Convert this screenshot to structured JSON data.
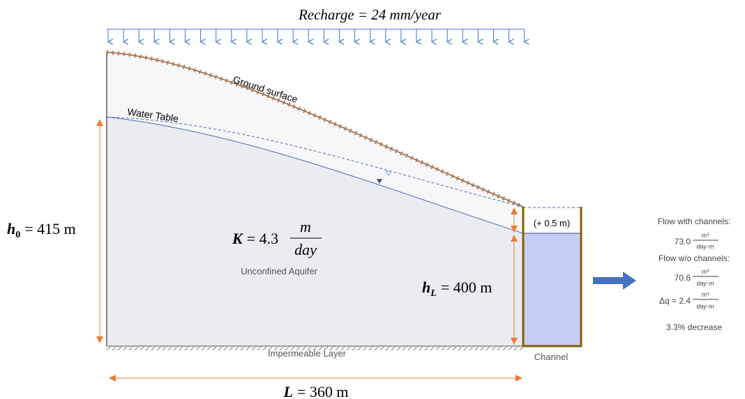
{
  "diagram": {
    "recharge": "Recharge = 24 mm/year",
    "ground_surface": "Ground surface",
    "water_table": "Water Table",
    "rise": "(+ 0.5 m)",
    "h0": {
      "symbol": "h",
      "subscript": "0",
      "value": "= 415 m"
    },
    "hL": {
      "symbol": "h",
      "subscript": "L",
      "value": "= 400 m"
    },
    "K": {
      "symbol": "K",
      "value": "= 4.3",
      "numerator": "m",
      "denominator": "day"
    },
    "aquifer": "Unconfined Aquifer",
    "impermeable": "Impermeable Layer",
    "channel": "Channel",
    "L": {
      "symbol": "L",
      "value": "= 360 m"
    },
    "results": {
      "with_label": "Flow with channels:",
      "with_value": "73.0",
      "with_num": "m³",
      "with_den": "day·m",
      "without_label": "Flow w/o channels:",
      "without_value": "70.6",
      "without_num": "m³",
      "without_den": "day·m",
      "delta_value": "Δq = 2.4",
      "delta_num": "m³",
      "delta_den": "day·m",
      "decrease": "3.3% decrease"
    }
  }
}
